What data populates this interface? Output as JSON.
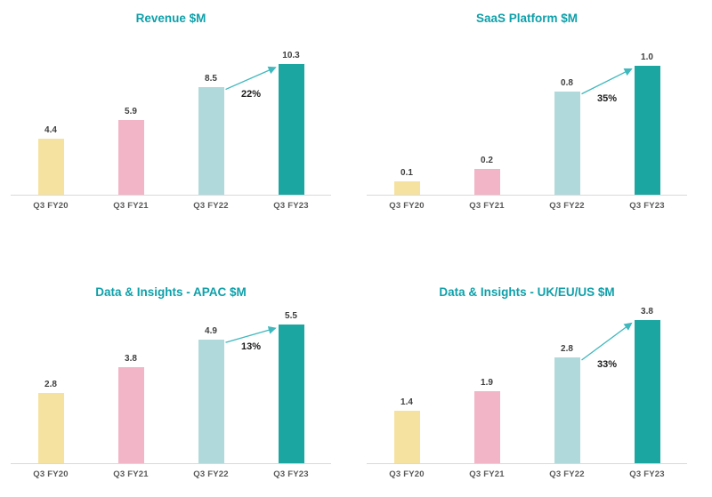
{
  "colors": {
    "background": "#FFFFFF",
    "title": "#0FA0AA",
    "series": [
      "#F6E2A0",
      "#F2B5C7",
      "#B0D9DC",
      "#1CA6A2"
    ],
    "arrow": "#3FB8BE",
    "value_label": "#3F3F3F",
    "axis_label": "#595959",
    "growth_label": "#1A1A1A",
    "axis_line": "#D9D9D9"
  },
  "chart_data": [
    {
      "type": "bar",
      "title": "Revenue $M",
      "categories": [
        "Q3 FY20",
        "Q3 FY21",
        "Q3 FY22",
        "Q3 FY23"
      ],
      "values": [
        4.4,
        5.9,
        8.5,
        10.3
      ],
      "growth": {
        "from": "Q3 FY22",
        "to": "Q3 FY23",
        "label": "22%"
      },
      "xlabel": "",
      "ylabel": "",
      "ylim": [
        0,
        11.2
      ],
      "grid": false,
      "legend": "none",
      "value_decimals": 1
    },
    {
      "type": "bar",
      "title": "SaaS Platform $M",
      "categories": [
        "Q3 FY20",
        "Q3 FY21",
        "Q3 FY22",
        "Q3 FY23"
      ],
      "values": [
        0.1,
        0.2,
        0.8,
        1.0
      ],
      "growth": {
        "from": "Q3 FY22",
        "to": "Q3 FY23",
        "label": "35%"
      },
      "xlabel": "",
      "ylabel": "",
      "ylim": [
        0,
        1.1
      ],
      "grid": false,
      "legend": "none",
      "value_decimals": 1
    },
    {
      "type": "bar",
      "title": "Data & Insights - APAC $M",
      "categories": [
        "Q3 FY20",
        "Q3 FY21",
        "Q3 FY22",
        "Q3 FY23"
      ],
      "values": [
        2.8,
        3.8,
        4.9,
        5.5
      ],
      "growth": {
        "from": "Q3 FY22",
        "to": "Q3 FY23",
        "label": "13%"
      },
      "xlabel": "",
      "ylabel": "",
      "ylim": [
        0,
        6.0
      ],
      "grid": false,
      "legend": "none",
      "value_decimals": 1
    },
    {
      "type": "bar",
      "title": "Data & Insights - UK/EU/US $M",
      "categories": [
        "Q3 FY20",
        "Q3 FY21",
        "Q3 FY22",
        "Q3 FY23"
      ],
      "values": [
        1.4,
        1.9,
        2.8,
        3.8
      ],
      "growth": {
        "from": "Q3 FY22",
        "to": "Q3 FY23",
        "label": "33%"
      },
      "xlabel": "",
      "ylabel": "",
      "ylim": [
        0,
        4.0
      ],
      "grid": false,
      "legend": "none",
      "value_decimals": 1
    }
  ]
}
